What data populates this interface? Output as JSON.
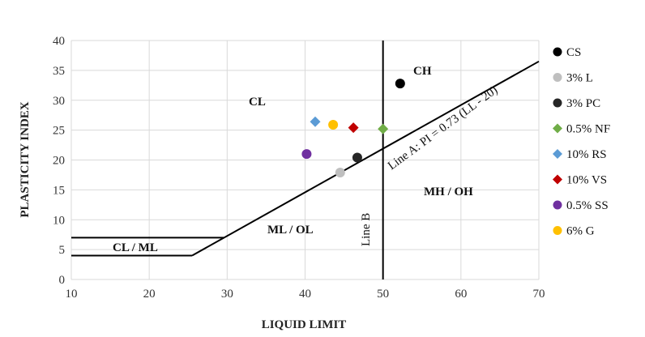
{
  "chart_data": {
    "type": "scatter",
    "xlabel": "LIQUID LIMIT",
    "ylabel": "PLASTICITY INDEX",
    "xlim": [
      10,
      70
    ],
    "ylim": [
      0,
      40
    ],
    "xticks": [
      10,
      20,
      30,
      40,
      50,
      60,
      70
    ],
    "yticks": [
      0,
      5,
      10,
      15,
      20,
      25,
      30,
      35,
      40
    ],
    "grid": true,
    "legend_position": "right",
    "series": [
      {
        "name": "CS",
        "color": "#000000",
        "marker": "circle",
        "x": [
          52.2
        ],
        "y": [
          32.8
        ]
      },
      {
        "name": "3% L",
        "color": "#bfbfbf",
        "marker": "circle",
        "x": [
          44.5
        ],
        "y": [
          17.9
        ]
      },
      {
        "name": "3% PC",
        "color": "#262626",
        "marker": "circle",
        "x": [
          46.7
        ],
        "y": [
          20.4
        ]
      },
      {
        "name": "0.5% NF",
        "color": "#70ad47",
        "marker": "diamond",
        "x": [
          50.0
        ],
        "y": [
          25.2
        ]
      },
      {
        "name": "10% RS",
        "color": "#5b9bd5",
        "marker": "diamond",
        "x": [
          41.3
        ],
        "y": [
          26.4
        ]
      },
      {
        "name": "10% VS",
        "color": "#c00000",
        "marker": "diamond",
        "x": [
          46.2
        ],
        "y": [
          25.4
        ]
      },
      {
        "name": "0.5% SS",
        "color": "#7030a0",
        "marker": "circle",
        "x": [
          40.2
        ],
        "y": [
          21.0
        ]
      },
      {
        "name": "6% G",
        "color": "#ffc000",
        "marker": "circle",
        "x": [
          43.6
        ],
        "y": [
          25.9
        ]
      }
    ],
    "reference_lines": [
      {
        "name": "Line A",
        "points": [
          [
            25.5,
            4
          ],
          [
            70,
            36.5
          ]
        ]
      },
      {
        "name": "Line B",
        "points": [
          [
            50,
            0
          ],
          [
            50,
            40
          ]
        ]
      },
      {
        "name": "boundary-upper",
        "points": [
          [
            10,
            7
          ],
          [
            29.6,
            7
          ]
        ]
      },
      {
        "name": "boundary-lower",
        "points": [
          [
            10,
            4
          ],
          [
            25.5,
            4
          ]
        ]
      }
    ],
    "region_labels": [
      "CH",
      "CL",
      "CL / ML",
      "ML / OL",
      "MH / OH"
    ],
    "annotations": {
      "line_a": "Line A: PI = 0.73 (LL - 20)",
      "line_b": "Line B"
    }
  }
}
